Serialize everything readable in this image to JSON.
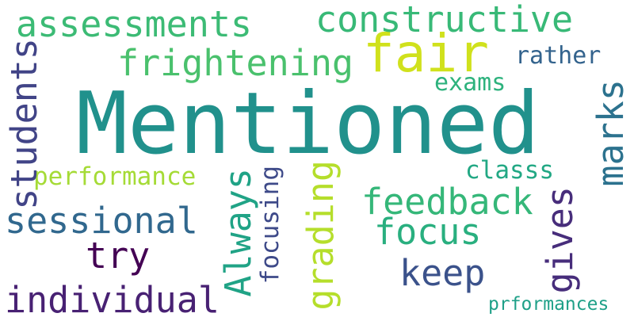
{
  "words": {
    "mentioned": {
      "text": "Mentioned",
      "color": "#21918c"
    },
    "fair": {
      "text": "fair",
      "color": "#d0e11c"
    },
    "assessments": {
      "text": "assessments",
      "color": "#3cbb75"
    },
    "constructive": {
      "text": "constructive",
      "color": "#38b977"
    },
    "frightening": {
      "text": "frightening",
      "color": "#4ac16d"
    },
    "rather": {
      "text": "rather",
      "color": "#33638d"
    },
    "exams": {
      "text": "exams",
      "color": "#2db27d"
    },
    "performance": {
      "text": "performance",
      "color": "#a5db36"
    },
    "classs": {
      "text": "classs",
      "color": "#22a884"
    },
    "feedback": {
      "text": "feedback",
      "color": "#35b779"
    },
    "sessional": {
      "text": "sessional",
      "color": "#31688e"
    },
    "focus": {
      "text": "focus",
      "color": "#29af7f"
    },
    "try": {
      "text": "try",
      "color": "#440154"
    },
    "keep": {
      "text": "keep",
      "color": "#3b528b"
    },
    "individual": {
      "text": "individual",
      "color": "#482173"
    },
    "prformances": {
      "text": "prformances",
      "color": "#1fa088"
    },
    "students": {
      "text": "students",
      "color": "#414487"
    },
    "marks": {
      "text": "marks",
      "color": "#2c728e"
    },
    "always": {
      "text": "Always",
      "color": "#20a386"
    },
    "focusing": {
      "text": "focusing",
      "color": "#3e4a89"
    },
    "grading": {
      "text": "grading",
      "color": "#b5de2b"
    },
    "gives": {
      "text": "gives",
      "color": "#472d7b"
    }
  }
}
